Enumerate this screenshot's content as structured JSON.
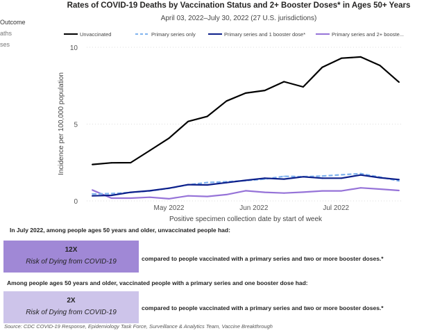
{
  "slicer": {
    "title": "Outcome",
    "items": [
      "aths",
      "ses"
    ]
  },
  "chart_data": {
    "type": "line",
    "title": "Rates of COVID-19 Deaths by Vaccination Status and 2+ Booster Doses* in Ages 50+ Years",
    "subtitle": "April 03, 2022–July 30, 2022 (27 U.S. jurisdictions)",
    "xlabel": "Positive specimen collection date by start of week",
    "ylabel": "Incidence per 100,000 population",
    "x": [
      "2022-04-03",
      "2022-04-10",
      "2022-04-17",
      "2022-04-24",
      "2022-05-01",
      "2022-05-08",
      "2022-05-15",
      "2022-05-22",
      "2022-05-29",
      "2022-06-05",
      "2022-06-12",
      "2022-06-19",
      "2022-06-26",
      "2022-07-03",
      "2022-07-10",
      "2022-07-17",
      "2022-07-24"
    ],
    "x_ticks": [
      {
        "date": "2022-05-01",
        "label": "May 2022"
      },
      {
        "date": "2022-06-01",
        "label": "Jun 2022"
      },
      {
        "date": "2022-07-01",
        "label": "Jul 2022"
      }
    ],
    "y_ticks": [
      0,
      5,
      10
    ],
    "ylim": [
      0,
      10
    ],
    "grid": true,
    "legend_position": "top",
    "series": [
      {
        "name": "Unvaccinated",
        "color": "#000000",
        "dash": false,
        "values": [
          2.37,
          2.48,
          2.49,
          3.28,
          4.08,
          5.17,
          5.5,
          6.5,
          7.02,
          7.19,
          7.76,
          7.42,
          8.7,
          9.29,
          9.37,
          8.82,
          7.73
        ]
      },
      {
        "name": "Primary series only",
        "color": "#7fb2ee",
        "dash": true,
        "values": [
          0.45,
          0.48,
          0.55,
          0.65,
          0.82,
          1.05,
          1.2,
          1.25,
          1.32,
          1.42,
          1.6,
          1.58,
          1.62,
          1.7,
          1.78,
          1.55,
          1.3
        ]
      },
      {
        "name": "Primary series and 1 booster dose*",
        "color": "#0c1f8a",
        "dash": false,
        "values": [
          0.33,
          0.36,
          0.56,
          0.66,
          0.83,
          1.06,
          1.04,
          1.19,
          1.34,
          1.48,
          1.42,
          1.57,
          1.48,
          1.48,
          1.69,
          1.51,
          1.39
        ]
      },
      {
        "name": "Primary series and 2+ booste...",
        "color": "#9673d8",
        "dash": false,
        "values": [
          0.71,
          0.18,
          0.18,
          0.24,
          0.14,
          0.33,
          0.29,
          0.41,
          0.66,
          0.56,
          0.51,
          0.57,
          0.65,
          0.65,
          0.85,
          0.77,
          0.68
        ]
      }
    ]
  },
  "statements": [
    {
      "intro": "In July 2022, among people ages 50 years and older, unvaccinated people had:",
      "value": "12X",
      "caption": "Risk of Dying from COVID-19",
      "comparison": "compared to people vaccinated with a primary series and two or more booster doses.*",
      "color": "#a088d6"
    },
    {
      "intro": "Among people ages 50 years and older, vaccinated people with a primary series and one booster dose had:",
      "value": "2X",
      "caption": "Risk of Dying from COVID-19",
      "comparison": "compared to people vaccinated with a primary series and two or more booster doses.*",
      "color": "#cdc4ea"
    }
  ],
  "source": "Source: CDC COVID-19 Response, Epidemiology Task Force, Surveillance & Analytics Team, Vaccine Breakthrough"
}
